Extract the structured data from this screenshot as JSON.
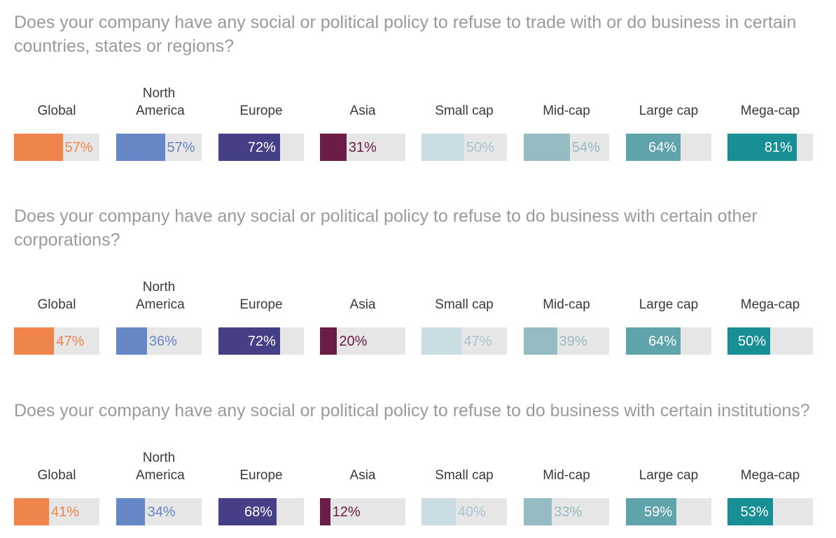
{
  "chart_data": [
    {
      "type": "bar",
      "title": "Does your company have any social or political policy to refuse to trade with or do business in certain countries, states or regions?",
      "categories": [
        "Global",
        "North America",
        "Europe",
        "Asia",
        "Small cap",
        "Mid-cap",
        "Large cap",
        "Mega-cap"
      ],
      "values": [
        57,
        57,
        72,
        31,
        50,
        54,
        64,
        81
      ],
      "value_labels": [
        "57%",
        "57%",
        "72%",
        "31%",
        "50%",
        "54%",
        "64%",
        "81%"
      ],
      "ylim": [
        0,
        100
      ]
    },
    {
      "type": "bar",
      "title": "Does your company have any social or political policy to refuse to do business with certain other corporations?",
      "categories": [
        "Global",
        "North America",
        "Europe",
        "Asia",
        "Small cap",
        "Mid-cap",
        "Large cap",
        "Mega-cap"
      ],
      "values": [
        47,
        36,
        72,
        20,
        47,
        39,
        64,
        50
      ],
      "value_labels": [
        "47%",
        "36%",
        "72%",
        "20%",
        "47%",
        "39%",
        "64%",
        "50%"
      ],
      "ylim": [
        0,
        100
      ]
    },
    {
      "type": "bar",
      "title": "Does your company have any social or political policy to refuse to do business with certain institutions?",
      "categories": [
        "Global",
        "North America",
        "Europe",
        "Asia",
        "Small cap",
        "Mid-cap",
        "Large cap",
        "Mega-cap"
      ],
      "values": [
        41,
        34,
        68,
        12,
        40,
        33,
        59,
        53
      ],
      "value_labels": [
        "41%",
        "34%",
        "68%",
        "12%",
        "40%",
        "33%",
        "59%",
        "53%"
      ],
      "ylim": [
        0,
        100
      ]
    }
  ],
  "colors": {
    "fills": [
      "#ef844d",
      "#6587c5",
      "#443f86",
      "#6b1d47",
      "#c9dde3",
      "#95bbc3",
      "#5fa4ab",
      "#178f95"
    ],
    "value_text": [
      "#ef844d",
      "#6587c5",
      "#ffffff",
      "#6b1d47",
      "#a8c5cf",
      "#95bbc3",
      "#ffffff",
      "#ffffff"
    ],
    "track": "#e6e6e6",
    "question_text": "#9a9a9a",
    "label_text": "#3a3a3a"
  }
}
